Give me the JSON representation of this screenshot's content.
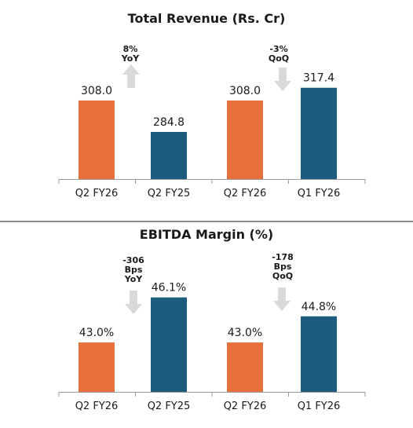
{
  "colors": {
    "orange": "#e8703a",
    "blue": "#1d5c7e",
    "arrow": "#d9d9d9"
  },
  "chart_data": [
    {
      "type": "bar",
      "title": "Total Revenue (Rs. Cr)",
      "categories": [
        "Q2 FY26",
        "Q2 FY25",
        "Q2 FY26",
        "Q1 FY26"
      ],
      "values": [
        308.0,
        284.8,
        308.0,
        317.4
      ],
      "value_labels": [
        "308.0",
        "284.8",
        "308.0",
        "317.4"
      ],
      "bar_colors": [
        "orange",
        "blue",
        "orange",
        "blue"
      ],
      "ylim": [
        250,
        330
      ],
      "annotations": [
        {
          "lines": [
            "8%",
            "YoY"
          ],
          "arrow": "up"
        },
        {
          "lines": [
            "-3%",
            "QoQ"
          ],
          "arrow": "down"
        }
      ]
    },
    {
      "type": "bar",
      "title": "EBITDA Margin (%)",
      "categories": [
        "Q2 FY26",
        "Q2 FY25",
        "Q2 FY26",
        "Q1 FY26"
      ],
      "values": [
        43.0,
        46.1,
        43.0,
        44.8
      ],
      "value_labels": [
        "43.0%",
        "46.1%",
        "43.0%",
        "44.8%"
      ],
      "bar_colors": [
        "orange",
        "blue",
        "orange",
        "blue"
      ],
      "ylim": [
        39.6,
        47.65
      ],
      "annotations": [
        {
          "lines": [
            "-306",
            "Bps",
            "YoY"
          ],
          "arrow": "down"
        },
        {
          "lines": [
            "-178",
            "Bps",
            "QoQ"
          ],
          "arrow": "down"
        }
      ]
    }
  ]
}
